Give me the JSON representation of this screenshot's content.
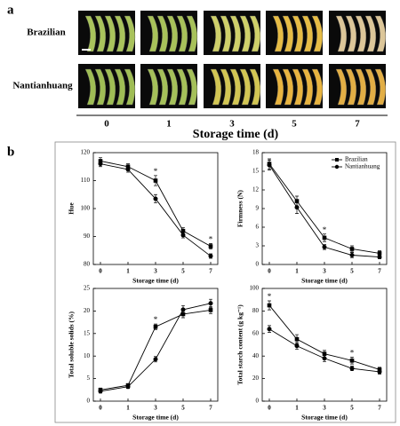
{
  "panel_a": {
    "label": "a",
    "rows": [
      "Brazilian",
      "Nantianhuang"
    ],
    "days": [
      "0",
      "1",
      "3",
      "5",
      "7"
    ],
    "xlabel": "Storage time (d)"
  },
  "panel_b": {
    "label": "b"
  },
  "chart_data": [
    {
      "type": "line",
      "xlabel": "Storage  time (d)",
      "ylabel": "Hue",
      "categories": [
        "0",
        "1",
        "3",
        "5",
        "7"
      ],
      "ylim": [
        80,
        120
      ],
      "yticks": [
        80,
        90,
        100,
        110,
        120
      ],
      "series": [
        {
          "marker": "square",
          "color": "#000000",
          "values": [
            117,
            115,
            110,
            92,
            86.5
          ],
          "errors": [
            1.2,
            1,
            1.8,
            1.2,
            1
          ]
        },
        {
          "marker": "circle",
          "color": "#000000",
          "values": [
            116,
            114,
            103.5,
            90.5,
            83
          ],
          "errors": [
            1,
            1,
            1.5,
            1,
            0.8
          ]
        }
      ],
      "significance": [
        null,
        null,
        "*",
        null,
        "*"
      ]
    },
    {
      "type": "line",
      "xlabel": "Storage  time (d)",
      "ylabel": "Firmness (N)",
      "categories": [
        "0",
        "1",
        "3",
        "5",
        "7"
      ],
      "ylim": [
        0,
        18
      ],
      "yticks": [
        0,
        3,
        6,
        9,
        12,
        15,
        18
      ],
      "legend": "upper right",
      "series": [
        {
          "name": "Brazilian",
          "marker": "square",
          "color": "#000000",
          "values": [
            16.2,
            10.2,
            4.3,
            2.5,
            1.8
          ],
          "errors": [
            0.8,
            0.8,
            0.6,
            0.5,
            0.4
          ]
        },
        {
          "name": "Nantianhuang",
          "marker": "circle",
          "color": "#000000",
          "values": [
            16,
            9.2,
            2.8,
            1.5,
            1.2
          ],
          "errors": [
            0.8,
            1,
            0.4,
            0.4,
            0.3
          ]
        }
      ],
      "significance": [
        null,
        null,
        "*",
        null,
        null
      ]
    },
    {
      "type": "line",
      "xlabel": "Storage  time (d)",
      "ylabel": "Total soluble solids (%)",
      "categories": [
        "0",
        "1",
        "3",
        "5",
        "7"
      ],
      "ylim": [
        0,
        25
      ],
      "yticks": [
        0,
        5,
        10,
        15,
        20,
        25
      ],
      "series": [
        {
          "marker": "square",
          "color": "#000000",
          "values": [
            2.5,
            3.5,
            16.5,
            19.3,
            20.2
          ],
          "errors": [
            0.4,
            0.4,
            0.6,
            0.8,
            0.8
          ]
        },
        {
          "marker": "circle",
          "color": "#000000",
          "values": [
            2.2,
            3.2,
            9.3,
            20.3,
            21.7
          ],
          "errors": [
            0.4,
            0.4,
            0.6,
            0.9,
            0.9
          ]
        }
      ],
      "significance": [
        null,
        null,
        "*",
        null,
        null
      ]
    },
    {
      "type": "line",
      "xlabel": "Storage  time (d)",
      "ylabel": "Total starch content (g kg⁻¹)",
      "categories": [
        "0",
        "1",
        "3",
        "5",
        "7"
      ],
      "ylim": [
        0,
        100
      ],
      "yticks": [
        0,
        20,
        40,
        60,
        80,
        100
      ],
      "series": [
        {
          "marker": "square",
          "color": "#000000",
          "values": [
            85,
            55,
            42,
            36,
            28
          ],
          "errors": [
            4,
            4,
            3,
            3,
            2
          ]
        },
        {
          "marker": "circle",
          "color": "#000000",
          "values": [
            64,
            49,
            38,
            29,
            26
          ],
          "errors": [
            3,
            3,
            3,
            2,
            2
          ]
        }
      ],
      "significance": [
        "*",
        null,
        null,
        "*",
        null
      ]
    }
  ]
}
